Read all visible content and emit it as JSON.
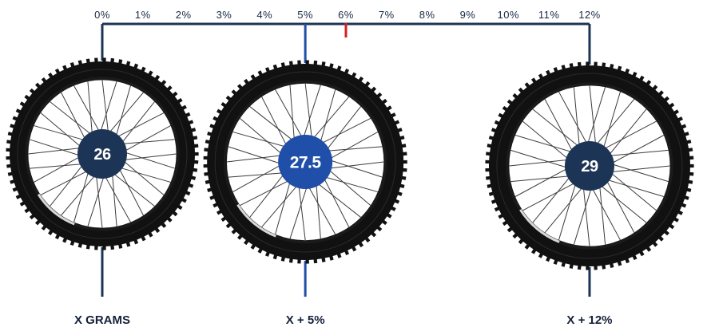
{
  "scale": {
    "ticks": [
      "0%",
      "1%",
      "2%",
      "3%",
      "4%",
      "5%",
      "6%",
      "7%",
      "8%",
      "9%",
      "10%",
      "11%",
      "12%"
    ],
    "marker_percent": 6
  },
  "wheels": [
    {
      "hub_label": "26",
      "caption": "X GRAMS",
      "percent": 0,
      "highlighted": false
    },
    {
      "hub_label": "27.5",
      "caption": "X + 5%",
      "percent": 5,
      "highlighted": true
    },
    {
      "hub_label": "29",
      "caption": "X + 12%",
      "percent": 12,
      "highlighted": false
    }
  ],
  "colors": {
    "navy": "#1c3455",
    "blue": "#1f4fa8",
    "marker": "#d42020",
    "tire": "#111111",
    "text": "#16213a"
  }
}
